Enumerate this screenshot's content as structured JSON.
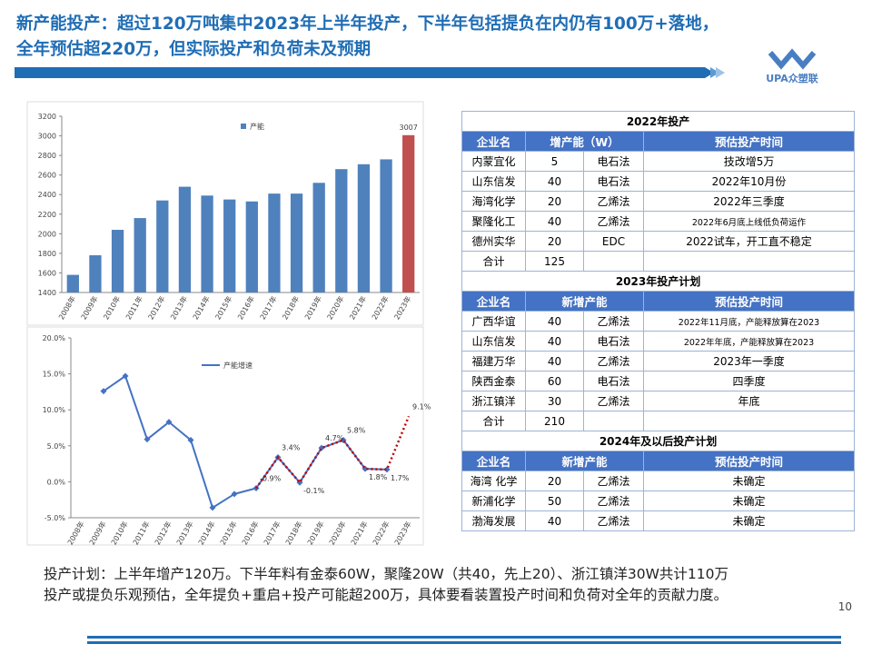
{
  "header": {
    "title_lines": [
      "新产能投产：超过120万吨集中2023年上半年投产，下半年包括提负在内仍有100万+落地，",
      "全年预估超220万，但实际投产和负荷未及预期"
    ],
    "logo": "UPA众塑联"
  },
  "chart_data": [
    {
      "type": "bar",
      "categories": [
        "2008年",
        "2009年",
        "2010年",
        "2011年",
        "2012年",
        "2013年",
        "2014年",
        "2015年",
        "2016年",
        "2017年",
        "2018年",
        "2019年",
        "2020年",
        "2021年",
        "2022年",
        "2023年"
      ],
      "series": [
        {
          "name": "产能",
          "color": "#4f81bd",
          "values": [
            1580,
            1780,
            2040,
            2160,
            2340,
            2480,
            2390,
            2350,
            2330,
            2410,
            2410,
            2520,
            2660,
            2710,
            2760,
            3007
          ],
          "colors": [
            "#4f81bd",
            "#4f81bd",
            "#4f81bd",
            "#4f81bd",
            "#4f81bd",
            "#4f81bd",
            "#4f81bd",
            "#4f81bd",
            "#4f81bd",
            "#4f81bd",
            "#4f81bd",
            "#4f81bd",
            "#4f81bd",
            "#4f81bd",
            "#4f81bd",
            "#c0504d"
          ],
          "value_labels": [
            null,
            null,
            null,
            null,
            null,
            null,
            null,
            null,
            null,
            null,
            null,
            null,
            null,
            null,
            null,
            "3007"
          ]
        }
      ],
      "ylim": [
        1400,
        3200
      ],
      "yticks": [
        1400,
        1600,
        1800,
        2000,
        2200,
        2400,
        2600,
        2800,
        3000,
        3200
      ]
    },
    {
      "type": "line",
      "categories": [
        "2008年",
        "2009年",
        "2010年",
        "2011年",
        "2012年",
        "2013年",
        "2014年",
        "2015年",
        "2016年",
        "2017年",
        "2018年",
        "2019年",
        "2020年",
        "2021年",
        "2022年",
        "2023年"
      ],
      "series": [
        {
          "name": "产能增速",
          "color": "#4472c4",
          "values": [
            null,
            12.6,
            14.7,
            5.9,
            8.3,
            5.8,
            -3.6,
            -1.7,
            -0.9,
            3.4,
            -0.1,
            4.7,
            5.8,
            1.8,
            1.7,
            null
          ]
        },
        {
          "color": "#c00000",
          "style": "dotted",
          "values": [
            null,
            null,
            null,
            null,
            null,
            null,
            null,
            null,
            -0.9,
            3.4,
            -0.1,
            4.7,
            5.8,
            1.8,
            1.7,
            9.1
          ],
          "value_labels": [
            null,
            null,
            null,
            null,
            null,
            null,
            null,
            null,
            "-0.9%",
            "3.4%",
            "-0.1%",
            "4.7%",
            "5.8%",
            "1.8%",
            "1.7%",
            "9.1%"
          ]
        }
      ],
      "ylim": [
        -5,
        20
      ],
      "yticks": [
        {
          "value": -5,
          "label": "-5.0%"
        },
        {
          "value": 0,
          "label": "0.0%"
        },
        {
          "value": 5,
          "label": "5.0%"
        },
        {
          "value": 10,
          "label": "10.0%"
        },
        {
          "value": 15,
          "label": "15.0%"
        },
        {
          "value": 20,
          "label": "20.0%"
        }
      ]
    }
  ],
  "tables": [
    {
      "title": "2022年投产",
      "header": [
        "企业名",
        "增产能（W）",
        "预估投产时间"
      ],
      "rows": [
        [
          "内蒙宜化",
          "5",
          "电石法",
          "技改增5万"
        ],
        [
          "山东信发",
          "40",
          "电石法",
          "2022年10月份"
        ],
        [
          "海湾化学",
          "20",
          "乙烯法",
          "2022年三季度"
        ],
        [
          "聚隆化工",
          "40",
          "乙烯法",
          "2022年6月底上线低负荷运作"
        ],
        [
          "德州实华",
          "20",
          "EDC",
          "2022试车，开工直不稳定"
        ]
      ],
      "total": [
        "合计",
        "125"
      ]
    },
    {
      "title": "2023年投产计划",
      "header": [
        "企业名",
        "新增产能",
        "预估投产时间"
      ],
      "rows": [
        [
          "广西华谊",
          "40",
          "乙烯法",
          "2022年11月底，产能释放算在2023"
        ],
        [
          "山东信发",
          "40",
          "电石法",
          "2022年年底，产能释放算在2023"
        ],
        [
          "福建万华",
          "40",
          "乙烯法",
          "2023年一季度"
        ],
        [
          "陕西金泰",
          "60",
          "电石法",
          "四季度"
        ],
        [
          "浙江镇洋",
          "30",
          "乙烯法",
          "年底"
        ]
      ],
      "total": [
        "合计",
        "210"
      ]
    },
    {
      "title": "2024年及以后投产计划",
      "header": [
        "企业名",
        "新增产能",
        "预估投产时间"
      ],
      "rows": [
        [
          "海湾 化学",
          "20",
          "乙烯法",
          "未确定"
        ],
        [
          "新浦化学",
          "50",
          "乙烯法",
          "未确定"
        ],
        [
          "渤海发展",
          "40",
          "乙烯法",
          "未确定"
        ]
      ]
    }
  ],
  "footer": {
    "lines": [
      "投产计划：上半年增产120万。下半年料有金泰60W，聚隆20W（共40，先上20）、浙江镇洋30W共计110万",
      "投产或提负乐观预估，全年提负+重启+投产可能超200万，具体要看装置投产时间和负荷对全年的贡献力度。"
    ],
    "page": "10"
  }
}
